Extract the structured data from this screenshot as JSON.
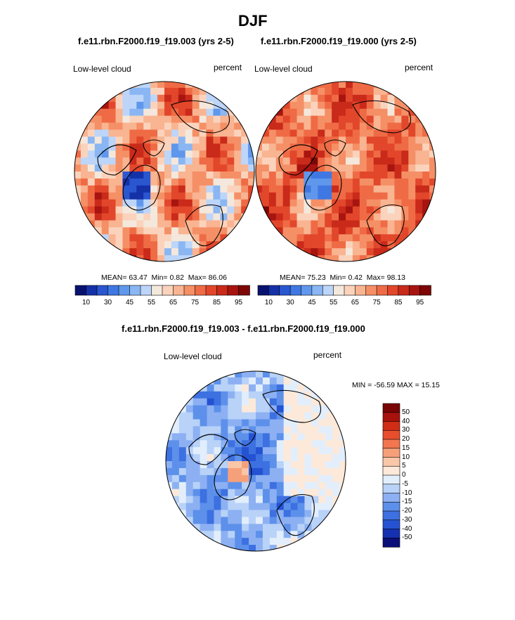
{
  "figure": {
    "title": "DJF",
    "case_a": "f.e11.rbn.F2000.f19_f19.003 (yrs 2-5)",
    "case_b": "f.e11.rbn.F2000.f19_f19.000 (yrs 2-5)",
    "diff_title": "f.e11.rbn.F2000.f19_f19.003 - f.e11.rbn.F2000.f19_f19.000"
  },
  "colors": {
    "base_scale": [
      "#08126e",
      "#1531a8",
      "#2a56d0",
      "#3f78e2",
      "#5f97ec",
      "#8ab6f3",
      "#bcd5f9",
      "#f4e8dc",
      "#fbd3bc",
      "#f9b491",
      "#f58f66",
      "#ef6b45",
      "#e2472b",
      "#c92a1a",
      "#a81410",
      "#7e0606"
    ],
    "diff_scale": [
      "#0a0f78",
      "#1530b0",
      "#2452d2",
      "#3d70e0",
      "#5d90ea",
      "#8cb0f2",
      "#b8d2f8",
      "#e2eefc",
      "#fde9d9",
      "#f9c6a8",
      "#f6a07a",
      "#f27650",
      "#e84e2c",
      "#d12d16",
      "#a7120c",
      "#7a0505"
    ],
    "land": "#000000"
  },
  "chart_data": [
    {
      "type": "heatmap",
      "projection": "north-polar-stereographic",
      "title": "f.e11.rbn.F2000.f19_f19.003 (yrs 2-5)",
      "left_label": "Low-level cloud",
      "right_label": "percent",
      "stats": {
        "mean_label": "MEAN=",
        "mean": "63.47",
        "min_label": "Min=",
        "min": "0.82",
        "max_label": "Max=",
        "max": "86.06"
      },
      "colorbar": {
        "orientation": "horizontal",
        "tick_labels": [
          "10",
          "30",
          "45",
          "55",
          "65",
          "75",
          "85",
          "95"
        ]
      },
      "pattern": "mixed"
    },
    {
      "type": "heatmap",
      "projection": "north-polar-stereographic",
      "title": "f.e11.rbn.F2000.f19_f19.000 (yrs 2-5)",
      "left_label": "Low-level cloud",
      "right_label": "percent",
      "stats": {
        "mean_label": "MEAN=",
        "mean": "75.23",
        "min_label": "Min=",
        "min": "0.42",
        "max_label": "Max=",
        "max": "98.13"
      },
      "colorbar": {
        "orientation": "horizontal",
        "tick_labels": [
          "10",
          "30",
          "45",
          "55",
          "65",
          "75",
          "85",
          "95"
        ]
      },
      "pattern": "warm"
    },
    {
      "type": "heatmap",
      "projection": "north-polar-stereographic",
      "title": "f.e11.rbn.F2000.f19_f19.003 - f.e11.rbn.F2000.f19_f19.000",
      "left_label": "Low-level cloud",
      "right_label": "percent",
      "stats": {
        "text": "MIN = -56.59 MAX =  15.15",
        "min": -56.59,
        "max": 15.15
      },
      "colorbar": {
        "orientation": "vertical",
        "tick_labels": [
          "50",
          "40",
          "30",
          "20",
          "15",
          "10",
          "5",
          "0",
          "-5",
          "-10",
          "-15",
          "-20",
          "-30",
          "-40",
          "-50"
        ]
      },
      "pattern": "cool"
    }
  ]
}
